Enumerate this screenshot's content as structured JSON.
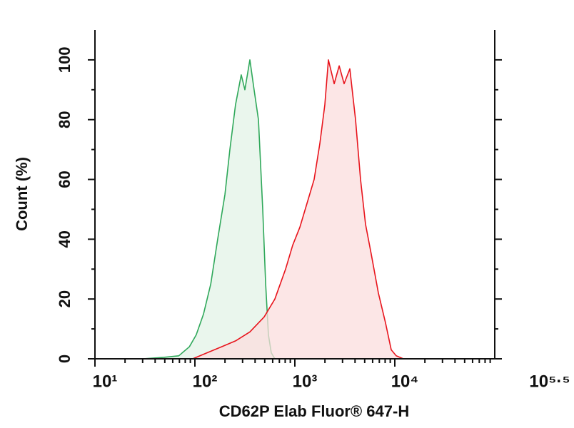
{
  "chart_data": {
    "type": "area",
    "xlabel": "CD62P Elab Fluor® 647-H",
    "ylabel": "Count (%)",
    "xscale": "log",
    "xlim": [
      10,
      100000
    ],
    "xticks": [
      {
        "value": 10,
        "label": "10¹"
      },
      {
        "value": 100,
        "label": "10²"
      },
      {
        "value": 1000,
        "label": "10³"
      },
      {
        "value": 10000,
        "label": "10⁴"
      },
      {
        "value": 316228,
        "label": "10⁵·⁵"
      }
    ],
    "ylim": [
      0,
      110
    ],
    "yticks": [
      0,
      20,
      40,
      60,
      80,
      100
    ],
    "grid": false,
    "series": [
      {
        "color": "#2fa85a",
        "fill": "#e3f3e7",
        "x": [
          30,
          49,
          69,
          88,
          103,
          122,
          144,
          169,
          200,
          224,
          255,
          291,
          316,
          355,
          391,
          432,
          477,
          510,
          544,
          581,
          631
        ],
        "values": [
          0,
          0.5,
          1,
          4,
          8,
          15,
          25,
          40,
          55,
          70,
          85,
          95,
          90,
          100,
          90,
          80,
          50,
          25,
          8,
          2,
          0
        ]
      },
      {
        "color": "#e8141c",
        "fill": "#fbdede",
        "x": [
          95,
          132,
          184,
          255,
          355,
          493,
          631,
          807,
          952,
          1122,
          1322,
          1559,
          1778,
          1995,
          2168,
          2473,
          2775,
          3113,
          3548,
          4047,
          4539,
          5093,
          5808,
          6855,
          8072,
          9204,
          10330,
          12180
        ],
        "values": [
          0,
          2,
          4,
          6,
          9,
          14,
          20,
          30,
          38,
          44,
          52,
          60,
          72,
          85,
          100,
          92,
          98,
          92,
          97,
          80,
          60,
          45,
          35,
          22,
          12,
          3,
          1,
          0
        ]
      }
    ]
  }
}
